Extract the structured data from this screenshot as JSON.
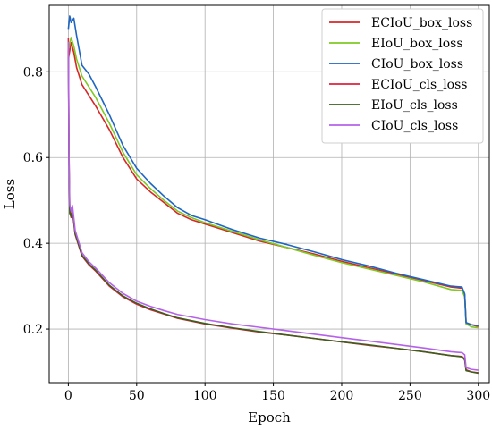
{
  "chart_data": {
    "type": "line",
    "title": "",
    "xlabel": "Epoch",
    "ylabel": "Loss",
    "xlim": [
      -14,
      308
    ],
    "ylim": [
      0.075,
      0.955
    ],
    "xticks": [
      0,
      50,
      100,
      150,
      200,
      250,
      300
    ],
    "yticks": [
      0.2,
      0.4,
      0.6,
      0.8
    ],
    "xtick_labels": [
      "0",
      "50",
      "100",
      "150",
      "200",
      "250",
      "300"
    ],
    "ytick_labels": [
      "0.2",
      "0.4",
      "0.6",
      "0.8"
    ],
    "grid": true,
    "legend_position": "top-right",
    "series": [
      {
        "name": "ECIoU_box_loss",
        "color": "#d62728",
        "points": [
          [
            0,
            0.83
          ],
          [
            2,
            0.868
          ],
          [
            4,
            0.845
          ],
          [
            6,
            0.81
          ],
          [
            10,
            0.77
          ],
          [
            15,
            0.745
          ],
          [
            20,
            0.72
          ],
          [
            30,
            0.665
          ],
          [
            40,
            0.6
          ],
          [
            50,
            0.55
          ],
          [
            60,
            0.52
          ],
          [
            70,
            0.495
          ],
          [
            80,
            0.47
          ],
          [
            90,
            0.455
          ],
          [
            100,
            0.445
          ],
          [
            120,
            0.425
          ],
          [
            140,
            0.405
          ],
          [
            160,
            0.39
          ],
          [
            180,
            0.375
          ],
          [
            200,
            0.358
          ],
          [
            220,
            0.343
          ],
          [
            240,
            0.328
          ],
          [
            260,
            0.313
          ],
          [
            280,
            0.298
          ],
          [
            288,
            0.295
          ],
          [
            290,
            0.28
          ],
          [
            291,
            0.215
          ],
          [
            295,
            0.21
          ],
          [
            300,
            0.206
          ]
        ]
      },
      {
        "name": "EIoU_box_loss",
        "color": "#7ec925",
        "points": [
          [
            0,
            0.85
          ],
          [
            2,
            0.88
          ],
          [
            4,
            0.86
          ],
          [
            6,
            0.83
          ],
          [
            10,
            0.79
          ],
          [
            15,
            0.765
          ],
          [
            20,
            0.74
          ],
          [
            30,
            0.68
          ],
          [
            40,
            0.612
          ],
          [
            50,
            0.56
          ],
          [
            60,
            0.528
          ],
          [
            70,
            0.5
          ],
          [
            80,
            0.475
          ],
          [
            90,
            0.46
          ],
          [
            100,
            0.448
          ],
          [
            120,
            0.428
          ],
          [
            140,
            0.408
          ],
          [
            160,
            0.39
          ],
          [
            180,
            0.372
          ],
          [
            200,
            0.355
          ],
          [
            220,
            0.34
          ],
          [
            240,
            0.325
          ],
          [
            260,
            0.31
          ],
          [
            280,
            0.292
          ],
          [
            288,
            0.29
          ],
          [
            290,
            0.275
          ],
          [
            291,
            0.212
          ],
          [
            295,
            0.205
          ],
          [
            300,
            0.203
          ]
        ]
      },
      {
        "name": "CIoU_box_loss",
        "color": "#1f65c2",
        "points": [
          [
            0,
            0.9
          ],
          [
            1,
            0.93
          ],
          [
            2,
            0.915
          ],
          [
            4,
            0.925
          ],
          [
            6,
            0.885
          ],
          [
            10,
            0.815
          ],
          [
            15,
            0.795
          ],
          [
            20,
            0.765
          ],
          [
            30,
            0.7
          ],
          [
            40,
            0.628
          ],
          [
            50,
            0.575
          ],
          [
            60,
            0.54
          ],
          [
            70,
            0.51
          ],
          [
            80,
            0.483
          ],
          [
            90,
            0.465
          ],
          [
            100,
            0.455
          ],
          [
            120,
            0.432
          ],
          [
            140,
            0.412
          ],
          [
            160,
            0.397
          ],
          [
            180,
            0.38
          ],
          [
            200,
            0.362
          ],
          [
            220,
            0.347
          ],
          [
            240,
            0.33
          ],
          [
            260,
            0.315
          ],
          [
            280,
            0.3
          ],
          [
            288,
            0.298
          ],
          [
            290,
            0.282
          ],
          [
            291,
            0.215
          ],
          [
            295,
            0.21
          ],
          [
            300,
            0.208
          ]
        ]
      },
      {
        "name": "ECIoU_cls_loss",
        "color": "#e0213f",
        "points": [
          [
            0,
            0.88
          ],
          [
            0.5,
            0.6
          ],
          [
            1,
            0.48
          ],
          [
            2,
            0.46
          ],
          [
            3,
            0.475
          ],
          [
            5,
            0.42
          ],
          [
            10,
            0.37
          ],
          [
            15,
            0.35
          ],
          [
            20,
            0.335
          ],
          [
            30,
            0.3
          ],
          [
            40,
            0.275
          ],
          [
            50,
            0.258
          ],
          [
            60,
            0.245
          ],
          [
            70,
            0.235
          ],
          [
            80,
            0.225
          ],
          [
            100,
            0.212
          ],
          [
            120,
            0.202
          ],
          [
            140,
            0.193
          ],
          [
            160,
            0.186
          ],
          [
            180,
            0.178
          ],
          [
            200,
            0.17
          ],
          [
            220,
            0.162
          ],
          [
            240,
            0.155
          ],
          [
            260,
            0.147
          ],
          [
            280,
            0.138
          ],
          [
            288,
            0.136
          ],
          [
            290,
            0.13
          ],
          [
            291,
            0.105
          ],
          [
            295,
            0.1
          ],
          [
            300,
            0.098
          ]
        ]
      },
      {
        "name": "EIoU_cls_loss",
        "color": "#3d5e1c",
        "points": [
          [
            0,
            0.85
          ],
          [
            0.5,
            0.58
          ],
          [
            1,
            0.47
          ],
          [
            2,
            0.462
          ],
          [
            3,
            0.478
          ],
          [
            5,
            0.422
          ],
          [
            10,
            0.372
          ],
          [
            15,
            0.352
          ],
          [
            20,
            0.337
          ],
          [
            30,
            0.302
          ],
          [
            40,
            0.277
          ],
          [
            50,
            0.26
          ],
          [
            60,
            0.247
          ],
          [
            70,
            0.236
          ],
          [
            80,
            0.226
          ],
          [
            100,
            0.213
          ],
          [
            120,
            0.203
          ],
          [
            140,
            0.194
          ],
          [
            160,
            0.186
          ],
          [
            180,
            0.178
          ],
          [
            200,
            0.17
          ],
          [
            220,
            0.163
          ],
          [
            240,
            0.155
          ],
          [
            260,
            0.147
          ],
          [
            280,
            0.138
          ],
          [
            288,
            0.135
          ],
          [
            290,
            0.128
          ],
          [
            291,
            0.103
          ],
          [
            295,
            0.1
          ],
          [
            300,
            0.097
          ]
        ]
      },
      {
        "name": "CIoU_cls_loss",
        "color": "#b562e8",
        "points": [
          [
            0,
            0.87
          ],
          [
            0.5,
            0.6
          ],
          [
            1,
            0.49
          ],
          [
            2,
            0.475
          ],
          [
            3,
            0.488
          ],
          [
            5,
            0.43
          ],
          [
            10,
            0.378
          ],
          [
            15,
            0.357
          ],
          [
            20,
            0.342
          ],
          [
            30,
            0.308
          ],
          [
            40,
            0.283
          ],
          [
            50,
            0.265
          ],
          [
            60,
            0.253
          ],
          [
            70,
            0.243
          ],
          [
            80,
            0.234
          ],
          [
            100,
            0.222
          ],
          [
            120,
            0.212
          ],
          [
            140,
            0.204
          ],
          [
            160,
            0.196
          ],
          [
            180,
            0.188
          ],
          [
            200,
            0.18
          ],
          [
            220,
            0.172
          ],
          [
            240,
            0.164
          ],
          [
            260,
            0.156
          ],
          [
            280,
            0.147
          ],
          [
            288,
            0.145
          ],
          [
            290,
            0.14
          ],
          [
            291,
            0.11
          ],
          [
            295,
            0.106
          ],
          [
            300,
            0.104
          ]
        ]
      }
    ]
  }
}
